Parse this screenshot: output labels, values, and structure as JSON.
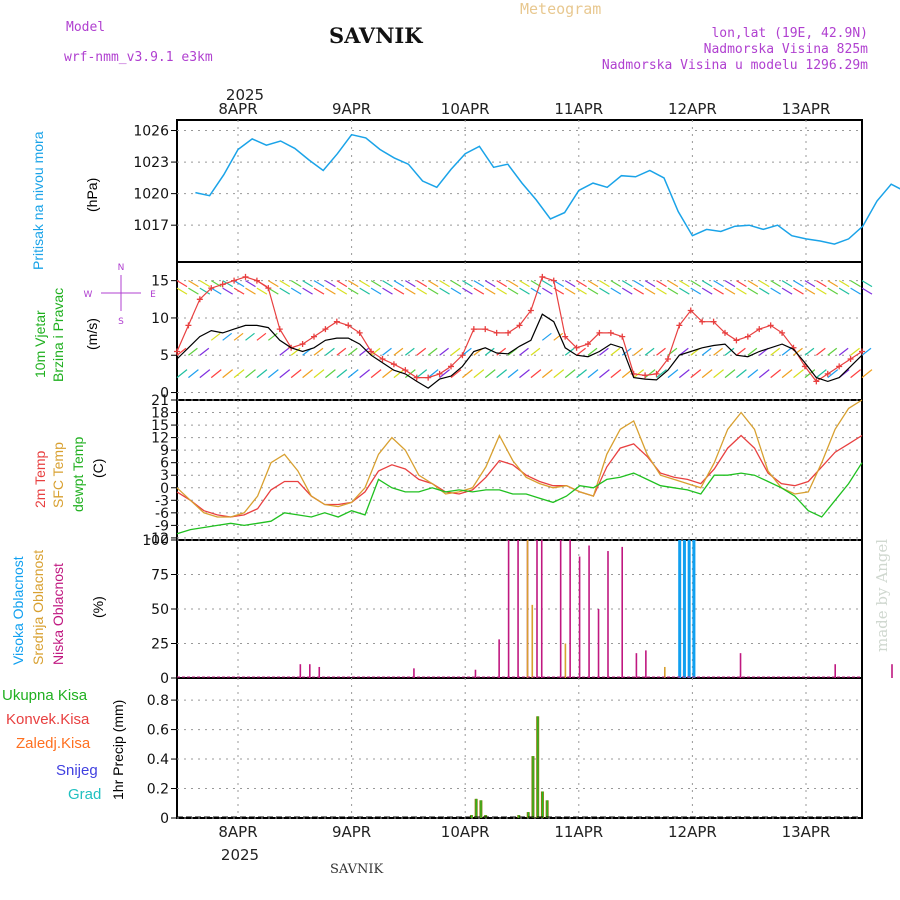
{
  "header": {
    "model_label": "Model",
    "model_name": "wrf-nmm_v3.9.1 e3km",
    "station": "SAVNIK",
    "product": "Meteogram",
    "coords": "lon,lat (19E, 42.9N)",
    "elevation": "Nadmorska Visina 825m",
    "model_elevation": "Nadmorska Visina u modelu 1296.29m",
    "footer_station": "SAVNIK",
    "watermark": "made by Angel",
    "year": "2025"
  },
  "days": [
    "8APR",
    "9APR",
    "10APR",
    "11APR",
    "12APR",
    "13APR"
  ],
  "colors": {
    "pressure": "#1aa3e8",
    "wind": "#000000",
    "gust": "#e84040",
    "t2m": "#e84040",
    "sfc": "#d8a030",
    "dew": "#20c020",
    "high": "#10a0f0",
    "mid": "#d8a030",
    "low": "#c01880",
    "total": "#20c020",
    "conv": "#e84040",
    "frozen": "#ff7020",
    "snow": "#4040e0",
    "graupel": "#20c0c0"
  },
  "panels": {
    "pressure": {
      "label1": "Pritisak na nivou mora",
      "label2": "(hPa)"
    },
    "wind": {
      "label1": "10m Vjetar",
      "label2": "Brzina i Pravac",
      "units": "(m/s)",
      "rose": {
        "n": "N",
        "s": "S",
        "e": "E",
        "w": "W"
      }
    },
    "temp": {
      "label_2m": "2m Temp",
      "label_sfc": "SFC Temp",
      "label_dew": "dewpt Temp",
      "units": "(C)"
    },
    "cloud": {
      "label_high": "Visoka Oblacnost",
      "label_mid": "Srednja Oblacnost",
      "label_low": "Niska Oblacnost",
      "units": "(%)"
    },
    "precip": {
      "label": "1hr Precip (mm)",
      "legend": [
        "Ukupna Kisa",
        "Konvek.Kisa",
        "Zaledj.Kisa",
        "Snijeg",
        "Grad"
      ]
    }
  },
  "chart_data": [
    {
      "type": "line",
      "title": "Pritisak na nivou mora",
      "ylabel": "(hPa)",
      "ylim": [
        1013.5,
        1027
      ],
      "yticks": [
        1017,
        1020,
        1023,
        1026
      ],
      "series": [
        {
          "name": "pressure",
          "x": [
            0,
            3,
            6,
            9,
            12,
            15,
            18,
            21,
            24,
            27,
            30,
            33,
            36,
            39,
            42,
            45,
            48,
            51,
            54,
            57,
            60,
            63,
            66,
            69,
            72,
            75,
            78,
            81,
            84,
            87,
            90,
            93,
            96,
            99,
            102,
            105,
            108,
            111,
            114,
            117,
            120,
            123,
            126,
            129,
            132,
            135,
            138,
            141,
            144,
            147,
            150,
            153,
            156,
            159,
            162,
            165,
            168,
            171,
            174,
            177,
            180,
            183,
            186
          ],
          "values": [
            1020.1,
            1019.8,
            1021.8,
            1024.2,
            1025.2,
            1024.6,
            1025.0,
            1024.3,
            1023.2,
            1022.2,
            1023.8,
            1025.6,
            1025.3,
            1024.2,
            1023.4,
            1022.8,
            1021.2,
            1020.6,
            1022.3,
            1023.8,
            1024.5,
            1022.5,
            1022.8,
            1021.0,
            1019.4,
            1017.6,
            1018.2,
            1020.3,
            1021.0,
            1020.6,
            1021.7,
            1021.6,
            1022.2,
            1021.5,
            1018.3,
            1016.0,
            1016.6,
            1016.4,
            1016.9,
            1017.0,
            1016.6,
            1017.0,
            1016.0,
            1015.7,
            1015.5,
            1015.2,
            1015.7,
            1016.9,
            1019.3,
            1020.9,
            1020.2,
            1019.0,
            1019.4,
            1020.2,
            1019.4,
            1019.0,
            1019.2,
            1019.0,
            1018.8,
            1018.8,
            1018.8,
            1018.8,
            1018.8
          ]
        }
      ]
    },
    {
      "type": "line",
      "title": "10m Vjetar",
      "ylabel": "(m/s)",
      "ylim": [
        -1,
        17.5
      ],
      "yticks": [
        0,
        5,
        10,
        15
      ],
      "series": [
        {
          "name": "speed",
          "values": [
            4.5,
            6.0,
            7.5,
            8.3,
            8.0,
            8.5,
            9.0,
            9.0,
            8.7,
            7.0,
            6.0,
            5.5,
            6.0,
            7.0,
            7.3,
            7.3,
            6.5,
            5.0,
            4.0,
            3.0,
            2.5,
            1.5,
            0.6,
            1.8,
            2.2,
            3.5,
            5.5,
            6.0,
            5.3,
            5.2,
            6.2,
            7.0,
            10.5,
            9.5,
            6.0,
            5.0,
            4.8,
            5.5,
            6.5,
            6.0,
            2.0,
            1.8,
            1.7,
            3.0,
            5.0,
            5.5,
            6.0,
            6.3,
            6.5,
            5.0,
            4.8,
            5.5,
            6.0,
            6.5,
            5.8,
            4.0,
            2.0,
            1.5,
            2.0,
            3.5,
            5.0
          ]
        },
        {
          "name": "gust",
          "values": [
            5.5,
            9.0,
            12.5,
            14.0,
            14.5,
            15.0,
            15.5,
            15.0,
            14.0,
            8.5,
            6.0,
            6.5,
            7.5,
            8.5,
            9.5,
            9.0,
            8.0,
            5.5,
            4.5,
            3.8,
            3.0,
            2.0,
            2.0,
            2.5,
            3.5,
            5.0,
            8.5,
            8.5,
            8.0,
            8.0,
            9.0,
            11.0,
            15.5,
            15.0,
            7.5,
            6.0,
            6.5,
            8.0,
            8.0,
            7.5,
            2.5,
            2.3,
            2.5,
            4.5,
            9.0,
            11.0,
            9.5,
            9.5,
            8.0,
            7.0,
            7.5,
            8.5,
            9.0,
            8.0,
            6.0,
            3.5,
            1.5,
            2.5,
            3.5,
            4.5,
            5.5
          ]
        }
      ]
    },
    {
      "type": "line",
      "title": "Temperature",
      "ylabel": "(C)",
      "ylim": [
        -12.5,
        21
      ],
      "yticks": [
        -12,
        -9,
        -6,
        -3,
        0,
        3,
        6,
        9,
        12,
        15,
        18,
        21
      ],
      "series": [
        {
          "name": "2m Temp",
          "values": [
            -1.0,
            -3.0,
            -5.5,
            -6.5,
            -7.0,
            -6.5,
            -5.0,
            -0.5,
            1.5,
            1.5,
            -2.0,
            -4.0,
            -4.0,
            -3.5,
            -1.0,
            4.0,
            5.5,
            4.5,
            2.0,
            1.0,
            -1.0,
            -1.5,
            -0.5,
            2.5,
            6.5,
            5.5,
            3.0,
            1.5,
            0.5,
            0.5,
            -1.0,
            -2.0,
            5.0,
            9.5,
            10.5,
            7.5,
            3.5,
            2.5,
            2.0,
            1.0,
            4.5,
            9.5,
            12.5,
            9.5,
            3.5,
            1.0,
            0.5,
            1.5,
            5.0,
            8.5,
            10.5,
            12.5
          ]
        },
        {
          "name": "SFC Temp",
          "values": [
            0.0,
            -3.0,
            -6.0,
            -7.0,
            -7.0,
            -6.0,
            -2.0,
            6.0,
            8.0,
            4.0,
            -2.0,
            -4.0,
            -4.5,
            -3.5,
            0.0,
            8.0,
            12.0,
            9.0,
            3.0,
            1.0,
            -1.5,
            -1.0,
            0.0,
            5.0,
            12.5,
            6.5,
            2.5,
            1.0,
            0.0,
            0.5,
            -1.0,
            -2.0,
            8.0,
            14.0,
            16.0,
            8.0,
            3.0,
            2.0,
            1.0,
            0.0,
            6.0,
            14.0,
            18.0,
            14.0,
            4.0,
            0.0,
            -1.5,
            -1.0,
            6.0,
            14.0,
            19.0,
            21.0
          ]
        },
        {
          "name": "dewpt Temp",
          "values": [
            -11.0,
            -10.0,
            -9.5,
            -9.0,
            -8.5,
            -9.0,
            -8.5,
            -8.0,
            -6.0,
            -6.5,
            -7.0,
            -6.0,
            -7.0,
            -5.5,
            -6.5,
            2.0,
            0.0,
            -1.0,
            -1.0,
            0.0,
            -1.0,
            -0.5,
            -1.0,
            -0.5,
            -0.5,
            -1.5,
            -1.5,
            -2.5,
            -3.5,
            -2.0,
            0.5,
            0.0,
            2.0,
            2.5,
            3.5,
            2.0,
            0.5,
            0.0,
            -0.5,
            -1.5,
            3.0,
            3.0,
            3.5,
            3.0,
            1.5,
            0.0,
            -2.0,
            -5.5,
            -7.0,
            -3.0,
            1.0,
            6.0
          ]
        }
      ]
    },
    {
      "type": "bar",
      "title": "Oblacnost",
      "ylabel": "(%)",
      "ylim": [
        0,
        100
      ],
      "yticks": [
        0,
        25,
        50,
        75,
        100
      ],
      "series": [
        {
          "name": "Niska Oblacnost",
          "x": [
            22,
            24,
            26,
            46,
            59,
            64,
            66,
            68,
            70,
            72,
            73,
            77,
            79,
            81,
            83,
            85,
            87,
            90,
            93,
            95,
            103,
            115,
            135,
            147,
            149
          ],
          "values": [
            10,
            10,
            8,
            7,
            6,
            28,
            100,
            100,
            100,
            100,
            100,
            100,
            100,
            88,
            96,
            50,
            92,
            95,
            18,
            20,
            6,
            18,
            10,
            10,
            10
          ]
        },
        {
          "name": "Srednja Oblacnost",
          "x": [
            70,
            71,
            78,
            99
          ],
          "values": [
            100,
            53,
            25,
            8
          ]
        },
        {
          "name": "Visoka Oblacnost",
          "x": [
            102,
            103,
            104,
            105
          ],
          "values": [
            100,
            100,
            100,
            100
          ]
        }
      ]
    },
    {
      "type": "bar",
      "title": "1hr Precip",
      "ylabel": "1hr Precip (mm)",
      "ylim": [
        0,
        0.95
      ],
      "yticks": [
        0,
        0.2,
        0.4,
        0.6,
        0.8
      ],
      "series": [
        {
          "name": "Ukupna Kisa",
          "x": [
            58,
            59,
            60,
            61,
            68,
            70,
            71,
            72,
            73,
            74
          ],
          "values": [
            0.02,
            0.13,
            0.12,
            0.02,
            0.02,
            0.04,
            0.42,
            0.69,
            0.18,
            0.12
          ]
        }
      ]
    }
  ]
}
